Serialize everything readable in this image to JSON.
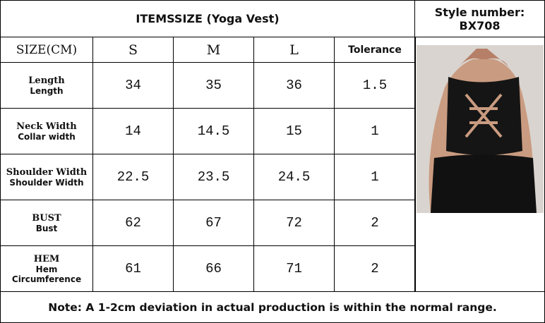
{
  "header": {
    "title": "ITEMSSIZE (Yoga Vest)",
    "style_number": "Style number: BX708"
  },
  "table": {
    "columns": [
      "SIZE(CM)",
      "S",
      "M",
      "L",
      "Tolerance"
    ],
    "rows": [
      {
        "label": "Length",
        "sublabel": "Length",
        "cells": [
          "34",
          "35",
          "36",
          "1.5"
        ]
      },
      {
        "label": "Neck Width",
        "sublabel": "Collar width",
        "cells": [
          "14",
          "14.5",
          "15",
          "1"
        ]
      },
      {
        "label": "Shoulder Width",
        "sublabel": "Shoulder Width",
        "cells": [
          "22.5",
          "23.5",
          "24.5",
          "1"
        ]
      },
      {
        "label": "BUST",
        "sublabel": "Bust",
        "cells": [
          "62",
          "67",
          "72",
          "2"
        ]
      },
      {
        "label": "HEM",
        "sublabel": "Hem Circumference",
        "cells": [
          "61",
          "66",
          "71",
          "2"
        ]
      }
    ]
  },
  "footer": {
    "note": "Note: A 1-2cm deviation in actual production is within the normal range."
  }
}
